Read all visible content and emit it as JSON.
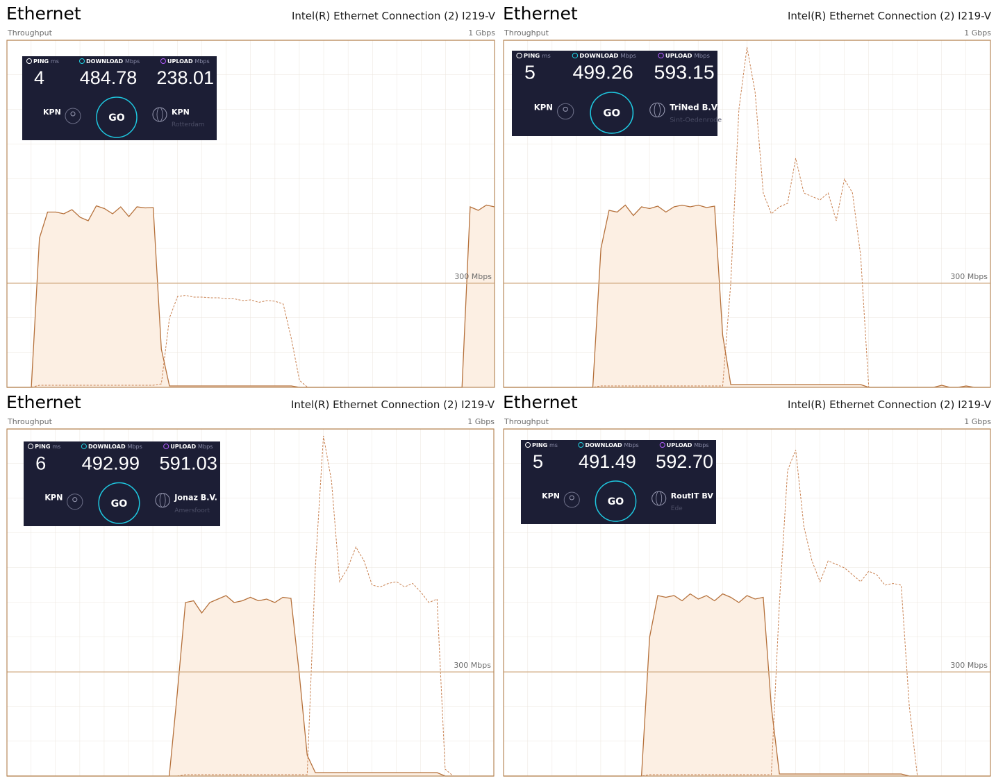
{
  "chart_data": [
    {
      "type": "area",
      "title": "Ethernet",
      "subtitle": "Intel(R) Ethernet Connection (2) I219-V",
      "y_label": "Throughput",
      "ylim": [
        0,
        1000
      ],
      "yticks": [
        {
          "value": 300,
          "label": "300 Mbps"
        },
        {
          "value": 1000,
          "label": "1 Gbps"
        }
      ],
      "grid": true,
      "series": [
        {
          "color": "#b5703a",
          "fill": "#fcefe3",
          "dashed": false,
          "values": [
            0,
            0,
            0,
            0,
            430,
            505,
            505,
            500,
            512,
            490,
            480,
            523,
            515,
            500,
            520,
            492,
            520,
            517,
            518,
            110,
            4,
            4,
            4,
            4,
            4,
            4,
            4,
            4,
            4,
            4,
            4,
            4,
            4,
            4,
            4,
            4,
            0,
            0,
            0,
            0,
            0,
            0,
            0,
            0,
            0,
            0,
            0,
            0,
            0,
            0,
            0,
            0,
            0,
            0,
            0,
            0,
            0,
            520,
            510,
            525,
            520
          ]
        },
        {
          "color": "#c98150",
          "dashed": true,
          "values": [
            0,
            0,
            0,
            0,
            6,
            6,
            6,
            6,
            6,
            6,
            6,
            6,
            6,
            6,
            6,
            6,
            6,
            6,
            6,
            10,
            200,
            262,
            265,
            260,
            260,
            258,
            258,
            255,
            255,
            250,
            252,
            245,
            250,
            248,
            240,
            140,
            20,
            0,
            0,
            0,
            0,
            0,
            0,
            0,
            0,
            0,
            0,
            0,
            0,
            0,
            0,
            0,
            0,
            0,
            0,
            0,
            0,
            0,
            0,
            0,
            0
          ]
        }
      ],
      "speedtest": {
        "ping_label": "PING",
        "ping_unit": "ms",
        "ping": "4",
        "download_label": "DOWNLOAD",
        "download_unit": "Mbps",
        "download": "484.78",
        "upload_label": "UPLOAD",
        "upload_unit": "Mbps",
        "upload": "238.01",
        "isp": "KPN",
        "button": "GO",
        "server": "KPN",
        "city": "Rotterdam"
      }
    },
    {
      "type": "area",
      "title": "Ethernet",
      "subtitle": "Intel(R) Ethernet Connection (2) I219-V",
      "y_label": "Throughput",
      "ylim": [
        0,
        1000
      ],
      "yticks": [
        {
          "value": 300,
          "label": "300 Mbps"
        },
        {
          "value": 1000,
          "label": "1 Gbps"
        }
      ],
      "grid": true,
      "series": [
        {
          "color": "#b5703a",
          "fill": "#fcefe3",
          "dashed": false,
          "values": [
            0,
            0,
            0,
            0,
            0,
            0,
            0,
            0,
            0,
            0,
            0,
            0,
            400,
            510,
            505,
            525,
            495,
            520,
            515,
            522,
            505,
            520,
            525,
            520,
            525,
            518,
            522,
            150,
            8,
            8,
            8,
            8,
            8,
            8,
            8,
            8,
            8,
            8,
            8,
            8,
            8,
            8,
            8,
            8,
            8,
            0,
            0,
            0,
            0,
            0,
            0,
            0,
            0,
            0,
            6,
            0,
            0,
            4,
            0,
            0,
            0
          ]
        },
        {
          "color": "#c98150",
          "dashed": true,
          "values": [
            0,
            0,
            0,
            0,
            0,
            0,
            0,
            0,
            0,
            0,
            0,
            0,
            4,
            4,
            4,
            4,
            4,
            4,
            4,
            4,
            4,
            4,
            4,
            4,
            4,
            4,
            4,
            4,
            300,
            800,
            980,
            850,
            560,
            500,
            520,
            530,
            660,
            560,
            550,
            540,
            560,
            480,
            600,
            560,
            380,
            0,
            0,
            0,
            0,
            0,
            0,
            0,
            0,
            0,
            0,
            0,
            0,
            0,
            0,
            0,
            0
          ]
        }
      ],
      "speedtest": {
        "ping_label": "PING",
        "ping_unit": "ms",
        "ping": "5",
        "download_label": "DOWNLOAD",
        "download_unit": "Mbps",
        "download": "499.26",
        "upload_label": "UPLOAD",
        "upload_unit": "Mbps",
        "upload": "593.15",
        "isp": "KPN",
        "button": "GO",
        "server": "TriNed B.V.",
        "city": "Sint-Oedenrode"
      }
    },
    {
      "type": "area",
      "title": "Ethernet",
      "subtitle": "Intel(R) Ethernet Connection (2) I219-V",
      "y_label": "Throughput",
      "ylim": [
        0,
        1000
      ],
      "yticks": [
        {
          "value": 300,
          "label": "300 Mbps"
        },
        {
          "value": 1000,
          "label": "1 Gbps"
        }
      ],
      "grid": true,
      "series": [
        {
          "color": "#b5703a",
          "fill": "#fcefe3",
          "dashed": false,
          "values": [
            0,
            0,
            0,
            0,
            0,
            0,
            0,
            0,
            0,
            0,
            0,
            0,
            0,
            0,
            0,
            0,
            0,
            0,
            0,
            0,
            0,
            240,
            500,
            505,
            470,
            500,
            510,
            520,
            500,
            505,
            515,
            505,
            510,
            500,
            515,
            512,
            300,
            60,
            10,
            10,
            10,
            10,
            10,
            10,
            10,
            10,
            10,
            10,
            10,
            10,
            10,
            10,
            10,
            10,
            0,
            0,
            0,
            0,
            0,
            0,
            0
          ]
        },
        {
          "color": "#c98150",
          "dashed": true,
          "values": [
            0,
            0,
            0,
            0,
            0,
            0,
            0,
            0,
            0,
            0,
            0,
            0,
            0,
            0,
            0,
            0,
            0,
            0,
            0,
            0,
            0,
            0,
            4,
            4,
            4,
            4,
            4,
            4,
            4,
            4,
            4,
            4,
            4,
            4,
            4,
            4,
            4,
            4,
            600,
            980,
            850,
            560,
            600,
            660,
            620,
            550,
            545,
            555,
            560,
            545,
            555,
            530,
            500,
            510,
            20,
            0,
            0,
            0,
            0,
            0,
            0
          ]
        }
      ],
      "speedtest": {
        "ping_label": "PING",
        "ping_unit": "ms",
        "ping": "6",
        "download_label": "DOWNLOAD",
        "download_unit": "Mbps",
        "download": "492.99",
        "upload_label": "UPLOAD",
        "upload_unit": "Mbps",
        "upload": "591.03",
        "isp": "KPN",
        "button": "GO",
        "server": "Jonaz B.V.",
        "city": "Amersfoort"
      }
    },
    {
      "type": "area",
      "title": "Ethernet",
      "subtitle": "Intel(R) Ethernet Connection (2) I219-V",
      "y_label": "Throughput",
      "ylim": [
        0,
        1000
      ],
      "yticks": [
        {
          "value": 300,
          "label": "300 Mbps"
        },
        {
          "value": 1000,
          "label": "1 Gbps"
        }
      ],
      "grid": true,
      "series": [
        {
          "color": "#b5703a",
          "fill": "#fcefe3",
          "dashed": false,
          "values": [
            0,
            0,
            0,
            0,
            0,
            0,
            0,
            0,
            0,
            0,
            0,
            0,
            0,
            0,
            0,
            0,
            0,
            0,
            400,
            520,
            515,
            520,
            505,
            525,
            510,
            520,
            505,
            525,
            515,
            500,
            520,
            510,
            515,
            200,
            6,
            6,
            6,
            6,
            6,
            6,
            6,
            6,
            6,
            6,
            6,
            6,
            6,
            6,
            6,
            6,
            0,
            0,
            0,
            0,
            0,
            0,
            0,
            0,
            0,
            0,
            0
          ]
        },
        {
          "color": "#c98150",
          "dashed": true,
          "values": [
            0,
            0,
            0,
            0,
            0,
            0,
            0,
            0,
            0,
            0,
            0,
            0,
            0,
            0,
            0,
            0,
            0,
            0,
            4,
            4,
            4,
            4,
            4,
            4,
            4,
            4,
            4,
            4,
            4,
            4,
            4,
            4,
            4,
            4,
            500,
            880,
            940,
            720,
            620,
            560,
            620,
            610,
            600,
            580,
            560,
            590,
            580,
            550,
            555,
            550,
            200,
            0,
            0,
            0,
            0,
            0,
            0,
            0,
            0,
            0,
            0
          ]
        }
      ],
      "speedtest": {
        "ping_label": "PING",
        "ping_unit": "ms",
        "ping": "5",
        "download_label": "DOWNLOAD",
        "download_unit": "Mbps",
        "download": "491.49",
        "upload_label": "UPLOAD",
        "upload_unit": "Mbps",
        "upload": "592.70",
        "isp": "KPN",
        "button": "GO",
        "server": "RoutIT BV",
        "city": "Ede"
      }
    }
  ]
}
